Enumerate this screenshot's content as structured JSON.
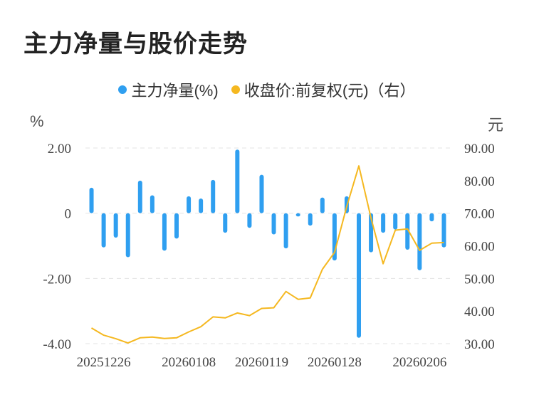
{
  "title": "主力净量与股价走势",
  "legend": {
    "bar_label": "主力净量(%)",
    "line_label": "收盘价:前复权(元)（右）"
  },
  "units": {
    "left": "%",
    "right": "元"
  },
  "colors": {
    "bar": "#2f9ff0",
    "line": "#f5b820",
    "grid": "#e3e3e3"
  },
  "chart_data": {
    "type": "bar",
    "x_ticks": [
      "20251226",
      "20260108",
      "20260119",
      "20260128",
      "20260206"
    ],
    "y_left": {
      "ticks": [
        "2.00",
        "0",
        "-2.00",
        "-4.00"
      ],
      "range": [
        -4,
        2
      ]
    },
    "y_right": {
      "ticks": [
        "90.00",
        "80.00",
        "70.00",
        "60.00",
        "50.00",
        "40.00",
        "30.00"
      ],
      "range": [
        30,
        90
      ]
    },
    "series": [
      {
        "name": "主力净量(%)",
        "type": "bar",
        "values": [
          0.78,
          -1.05,
          -0.75,
          -1.35,
          1.0,
          0.55,
          -1.15,
          -0.78,
          0.52,
          0.45,
          1.02,
          -0.6,
          1.95,
          -0.45,
          1.18,
          -0.65,
          -1.08,
          -0.1,
          -0.38,
          0.48,
          -1.45,
          0.52,
          -3.82,
          -1.2,
          -0.6,
          -0.5,
          -1.12,
          -1.75,
          -0.25,
          -1.05
        ]
      },
      {
        "name": "收盘价:前复权(元)（右）",
        "type": "line",
        "values": [
          34.8,
          32.6,
          31.5,
          30.2,
          31.8,
          32.0,
          31.6,
          31.8,
          33.6,
          35.2,
          38.2,
          37.9,
          39.4,
          38.6,
          40.8,
          41.0,
          46.0,
          43.6,
          44.0,
          52.8,
          58.0,
          72.0,
          84.5,
          68.5,
          54.5,
          64.8,
          65.2,
          58.6,
          60.8,
          61.0
        ]
      }
    ]
  }
}
